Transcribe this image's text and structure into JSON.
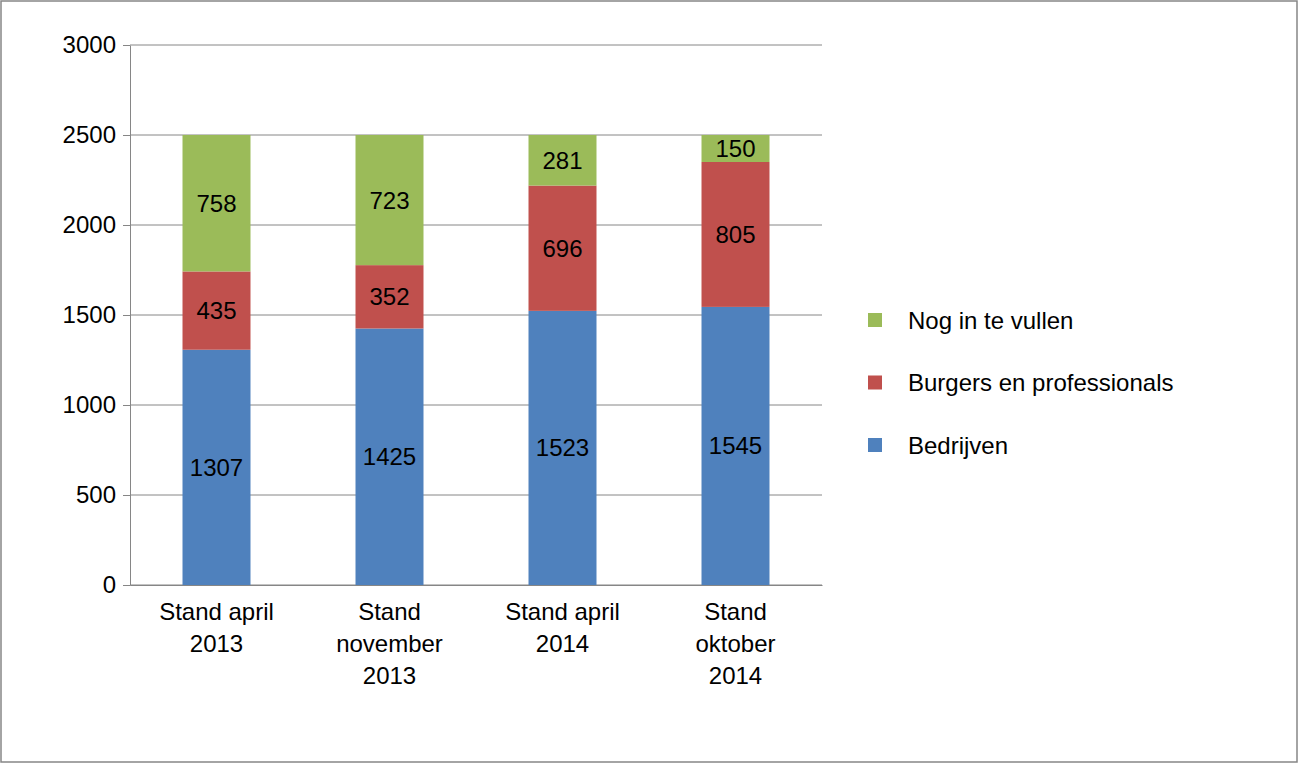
{
  "chart_data": {
    "type": "bar",
    "stacked": true,
    "data_labels": true,
    "grid": true,
    "legend": "right",
    "categories": [
      "Stand april 2013",
      "Stand november 2013",
      "Stand april 2014",
      "Stand oktober 2014"
    ],
    "series": [
      {
        "name": "Bedrijven",
        "color": "#4f81bd",
        "values": [
          1307,
          1425,
          1523,
          1545
        ]
      },
      {
        "name": "Burgers en professionals",
        "color": "#c0504d",
        "values": [
          435,
          352,
          696,
          805
        ]
      },
      {
        "name": "Nog in te vullen",
        "color": "#9bbb59",
        "values": [
          758,
          723,
          281,
          150
        ]
      }
    ],
    "ylim": [
      0,
      3000
    ],
    "yticks": [
      0,
      500,
      1000,
      1500,
      2000,
      2500,
      3000
    ]
  }
}
